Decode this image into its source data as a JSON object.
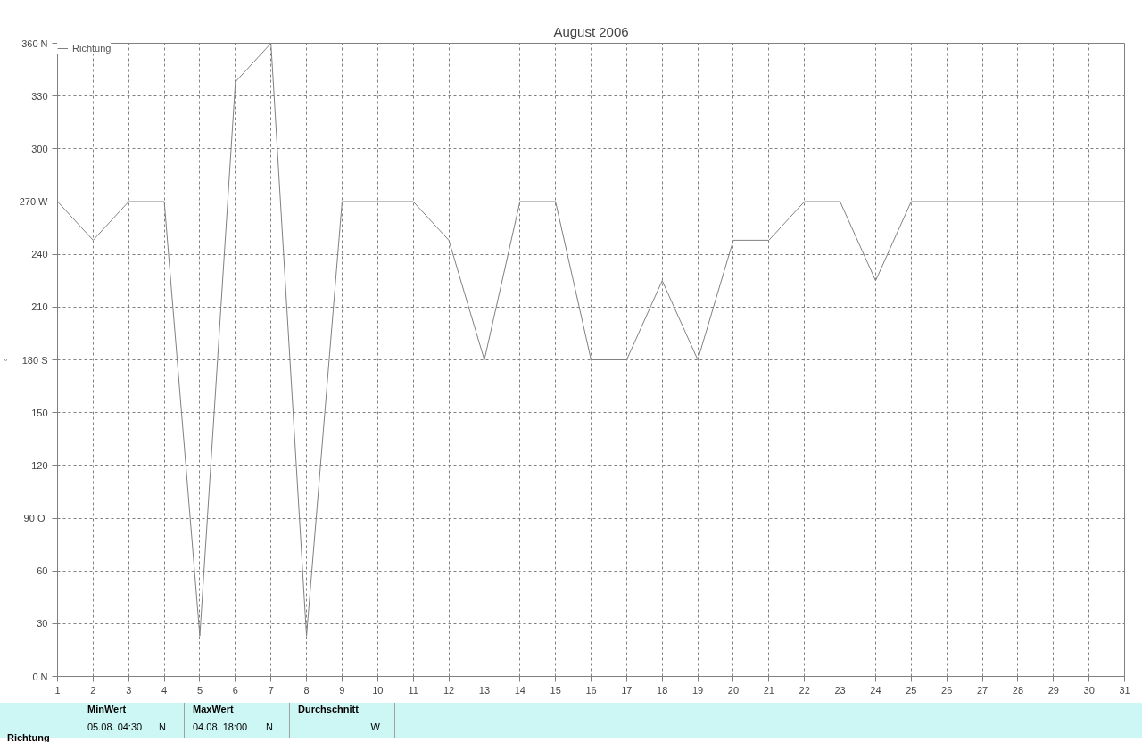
{
  "chart_data": {
    "type": "line",
    "title": "August 2006",
    "ylabel": "°",
    "x": [
      1,
      2,
      3,
      4,
      5,
      6,
      7,
      8,
      9,
      10,
      11,
      12,
      13,
      14,
      15,
      16,
      17,
      18,
      19,
      20,
      21,
      22,
      23,
      24,
      25,
      26,
      27,
      28,
      29,
      30,
      31
    ],
    "series": [
      {
        "name": "Richtung",
        "color": "#808080",
        "values": [
          270,
          248,
          270,
          270,
          23,
          338,
          360,
          23,
          270,
          270,
          270,
          248,
          180,
          270,
          270,
          180,
          180,
          225,
          180,
          248,
          248,
          270,
          270,
          225,
          270,
          270,
          270,
          270,
          270,
          270,
          270
        ]
      }
    ],
    "xlim": [
      1,
      31
    ],
    "xticks": [
      1,
      2,
      3,
      4,
      5,
      6,
      7,
      8,
      9,
      10,
      11,
      12,
      13,
      14,
      15,
      16,
      17,
      18,
      19,
      20,
      21,
      22,
      23,
      24,
      25,
      26,
      27,
      28,
      29,
      30,
      31
    ],
    "ylim": [
      0,
      360
    ],
    "yticks": [
      {
        "value": 0,
        "label": "0 N"
      },
      30,
      60,
      {
        "value": 90,
        "label": "90  O"
      },
      120,
      150,
      {
        "value": 180,
        "label": "180 S"
      },
      210,
      240,
      {
        "value": 270,
        "label": "270 W"
      },
      300,
      330,
      {
        "value": 360,
        "label": "360 N"
      }
    ],
    "grid": true,
    "legend": "top left",
    "marker": "none",
    "line_style": "solid",
    "annotations": [
      "Richtung",
      "MinWert",
      "05.08.  04:30",
      "N",
      "MaxWert",
      "04.08.  18:00",
      "N",
      "Durchschnitt",
      "W"
    ]
  }
}
